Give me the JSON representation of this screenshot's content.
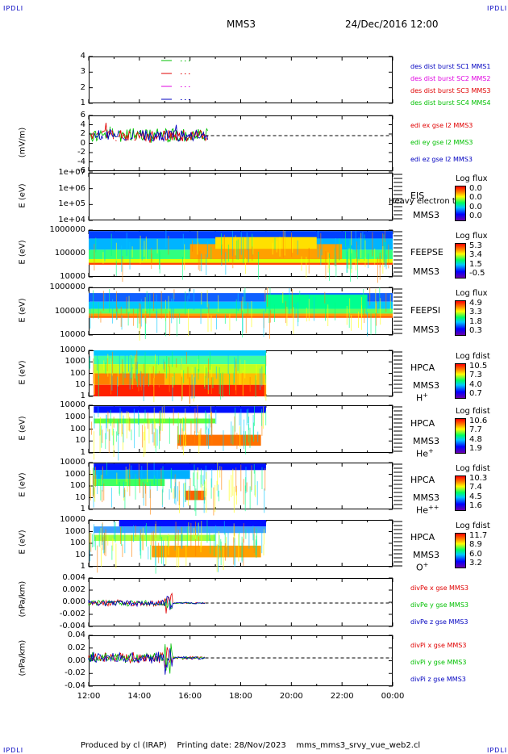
{
  "corner_tl": "IPDLI",
  "corner_tr": "IPDLI",
  "corner_bl": "IPDLI",
  "corner_br": "IPDLI",
  "header": {
    "mission": "MMS3",
    "datetime": "24/Dec/2016 12:00"
  },
  "footer": {
    "produced": "Produced by cl (IRAP)",
    "printing": "Printing date: 28/Nov/2023",
    "script": "mms_mms3_srvy_vue_web2.cl"
  },
  "colors": {
    "green": "#00c000",
    "red": "#e00000",
    "blue": "#0000c0",
    "magenta": "#e000e0"
  },
  "chart_data": {
    "type": "line",
    "x_ticks": [
      "12:00",
      "14:00",
      "16:00",
      "18:00",
      "20:00",
      "22:00",
      "00:00"
    ],
    "panels": [
      {
        "id": "burst",
        "yticks": [
          "4",
          "3",
          "2",
          "1"
        ],
        "legend": [
          {
            "text": "des dist burst SC1 MMS1",
            "color": "#0000c0"
          },
          {
            "text": "des dist burst SC2 MMS2",
            "color": "#e000e0"
          },
          {
            "text": "des dist burst SC3 MMS3",
            "color": "#e00000"
          },
          {
            "text": "des dist burst SC4 MMS4",
            "color": "#00c000"
          }
        ]
      },
      {
        "id": "edi",
        "ylabel": "(mV/m)",
        "yticks": [
          "6",
          "4",
          "2",
          "0",
          "-2",
          "-4",
          "-6"
        ],
        "legend": [
          {
            "text": "edi ex gse l2 MMS3",
            "color": "#e00000"
          },
          {
            "text": "edi ey gse l2 MMS3",
            "color": "#00c000"
          },
          {
            "text": "edi ez gse l2 MMS3",
            "color": "#0000c0"
          }
        ]
      },
      {
        "id": "eis",
        "ylabel": "E (eV)",
        "yticks": [
          "1e+07",
          "1e+06",
          "1e+05",
          "1e+04"
        ],
        "inst": "EIS",
        "inst2": "MMS3",
        "overlay": "Heavy electron to",
        "cb_title": "Log flux",
        "cb_values": [
          "0.0",
          "0.0",
          "0.0",
          "0.0"
        ]
      },
      {
        "id": "feepse",
        "ylabel": "E (eV)",
        "yticks": [
          "1000000",
          "100000",
          "10000"
        ],
        "inst": "FEEPSE",
        "inst2": "MMS3",
        "cb_title": "Log flux",
        "cb_values": [
          "5.3",
          "3.4",
          "1.5",
          "-0.5"
        ]
      },
      {
        "id": "feepsi",
        "ylabel": "E (eV)",
        "yticks": [
          "1000000",
          "100000",
          "10000"
        ],
        "inst": "FEEPSI",
        "inst2": "MMS3",
        "cb_title": "Log flux",
        "cb_values": [
          "4.9",
          "3.3",
          "1.8",
          "0.3"
        ]
      },
      {
        "id": "hpca_h",
        "ylabel": "E (eV)",
        "yticks": [
          "10000",
          "1000",
          "100",
          "10",
          "1"
        ],
        "inst": "HPCA",
        "inst2": "MMS3",
        "species": "H",
        "sup": "+",
        "cb_title": "Log fdist",
        "cb_values": [
          "10.5",
          "7.3",
          "4.0",
          "0.7"
        ]
      },
      {
        "id": "hpca_he",
        "ylabel": "E (eV)",
        "yticks": [
          "10000",
          "1000",
          "100",
          "10",
          "1"
        ],
        "inst": "HPCA",
        "inst2": "MMS3",
        "species": "He",
        "sup": "+",
        "cb_title": "Log fdist",
        "cb_values": [
          "10.6",
          "7.7",
          "4.8",
          "1.9"
        ]
      },
      {
        "id": "hpca_hepp",
        "ylabel": "E (eV)",
        "yticks": [
          "10000",
          "1000",
          "100",
          "10",
          "1"
        ],
        "inst": "HPCA",
        "inst2": "MMS3",
        "species": "He",
        "sup": "++",
        "cb_title": "Log fdist",
        "cb_values": [
          "10.3",
          "7.4",
          "4.5",
          "1.6"
        ]
      },
      {
        "id": "hpca_o",
        "ylabel": "E (eV)",
        "yticks": [
          "10000",
          "1000",
          "100",
          "10",
          "1"
        ],
        "inst": "HPCA",
        "inst2": "MMS3",
        "species": "O",
        "sup": "+",
        "cb_title": "Log fdist",
        "cb_values": [
          "11.7",
          "8.9",
          "6.0",
          "3.2"
        ]
      },
      {
        "id": "divpe",
        "ylabel": "(nPa/km)",
        "yticks": [
          "0.004",
          "0.002",
          "0.000",
          "-0.002",
          "-0.004"
        ],
        "legend": [
          {
            "text": "divPe x gse MMS3",
            "color": "#e00000"
          },
          {
            "text": "divPe y gse MMS3",
            "color": "#00c000"
          },
          {
            "text": "divPe z gse MMS3",
            "color": "#0000c0"
          }
        ]
      },
      {
        "id": "divpi",
        "ylabel": "(nPa/km)",
        "yticks": [
          "0.04",
          "0.02",
          "0.00",
          "-0.02",
          "-0.04"
        ],
        "legend": [
          {
            "text": "divPi x gse MMS3",
            "color": "#e00000"
          },
          {
            "text": "divPi y gse MMS3",
            "color": "#00c000"
          },
          {
            "text": "divPi z gse MMS3",
            "color": "#0000c0"
          }
        ]
      }
    ]
  }
}
